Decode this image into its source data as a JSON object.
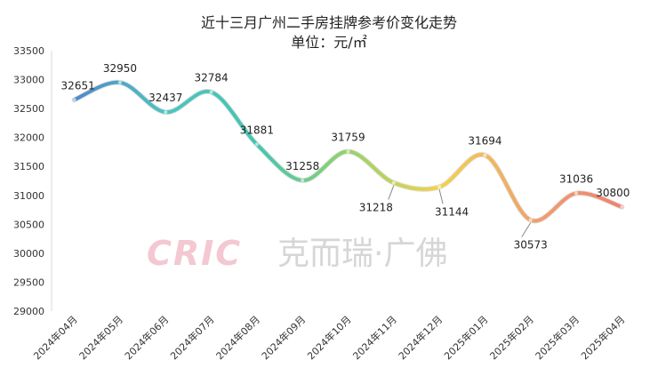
{
  "chart_data": {
    "type": "line",
    "title": "近十三月广州二手房挂牌参考价变化走势",
    "subtitle": "单位：元/㎡",
    "categories": [
      "2024年04月",
      "2024年05月",
      "2024年06月",
      "2024年07月",
      "2024年08月",
      "2024年09月",
      "2024年10月",
      "2024年11月",
      "2024年12月",
      "2025年01月",
      "2025年02月",
      "2025年03月",
      "2025年04月"
    ],
    "values": [
      32651,
      32950,
      32437,
      32784,
      31881,
      31258,
      31759,
      31218,
      31144,
      31694,
      30573,
      31036,
      30800
    ],
    "ylim": [
      29000,
      33500
    ],
    "ytick_step": 500,
    "grid": false,
    "legend": "none",
    "xlabel": "",
    "ylabel": "",
    "line_colors": [
      "#4f88cc",
      "#4ec4c0",
      "#3fc6b0",
      "#93d36a",
      "#f5d247",
      "#f0a26a",
      "#f08070"
    ]
  },
  "watermark": {
    "letters": "CRIC",
    "text": "克而瑞·广佛",
    "letters_color": "#f3c8d2",
    "text_color": "#d6d6d6"
  }
}
